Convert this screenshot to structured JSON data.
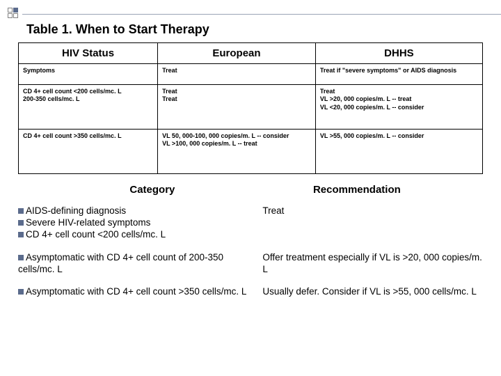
{
  "title": "Table 1. When to Start Therapy",
  "table": {
    "headers": {
      "c1": "HIV Status",
      "c2": "European",
      "c3": "DHHS"
    },
    "rows": [
      {
        "c1": "Symptoms",
        "c2": "Treat",
        "c3": "Treat if \"severe symptoms\" or AIDS diagnosis"
      },
      {
        "c1": "CD 4+ cell count <200 cells/mc. L\n200-350 cells/mc. L",
        "c2": "Treat\nTreat",
        "c3": "Treat\nVL >20, 000 copies/m. L -- treat\nVL <20, 000 copies/m. L -- consider"
      },
      {
        "c1": "CD 4+ cell count >350 cells/mc. L",
        "c2": "VL 50, 000-100, 000 copies/m. L -- consider\nVL >100, 000 copies/m. L -- treat",
        "c3": "VL >55, 000 copies/m. L -- consider"
      }
    ]
  },
  "subheaders": {
    "category": "Category",
    "recommendation": "Recommendation"
  },
  "items": [
    {
      "bullets": [
        "AIDS-defining diagnosis",
        "Severe HIV-related symptoms",
        "CD 4+ cell count <200 cells/mc. L"
      ],
      "rec": "Treat"
    },
    {
      "bullets": [
        "Asymptomatic with CD 4+ cell count of 200-350 cells/mc. L"
      ],
      "rec": "Offer treatment especially if VL is >20, 000 copies/m. L"
    },
    {
      "bullets": [
        "Asymptomatic with CD 4+ cell count >350 cells/mc. L"
      ],
      "rec": "Usually defer. Consider if VL is >55, 000 cells/mc. L"
    }
  ],
  "colors": {
    "accent": "#5b6b8c",
    "border": "#000000",
    "rule": "#9aa3b5"
  }
}
